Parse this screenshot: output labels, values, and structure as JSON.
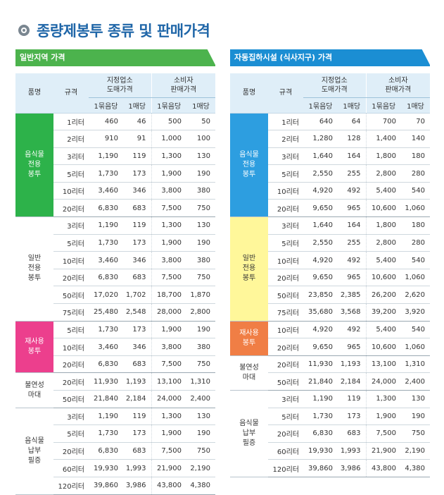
{
  "page_title": "종량제봉투 종류 및 판매가격",
  "headers": {
    "item": "품명",
    "spec": "규격",
    "wholesale": "지정업소\n도매가격",
    "retail": "소비자\n판매가격",
    "bundle": "1묶음당",
    "sheet": "1매당"
  },
  "left": {
    "title": "일반지역 가격",
    "groups": [
      {
        "name": "음식물\n전용\n봉투",
        "color": "green",
        "rows": [
          [
            "1리터",
            "460",
            "46",
            "500",
            "50"
          ],
          [
            "2리터",
            "910",
            "91",
            "1,000",
            "100"
          ],
          [
            "3리터",
            "1,190",
            "119",
            "1,300",
            "130"
          ],
          [
            "5리터",
            "1,730",
            "173",
            "1,900",
            "190"
          ],
          [
            "10리터",
            "3,460",
            "346",
            "3,800",
            "380"
          ],
          [
            "20리터",
            "6,830",
            "683",
            "7,500",
            "750"
          ]
        ]
      },
      {
        "name": "일반\n전용\n봉투",
        "color": "none",
        "rows": [
          [
            "3리터",
            "1,190",
            "119",
            "1,300",
            "130"
          ],
          [
            "5리터",
            "1,730",
            "173",
            "1,900",
            "190"
          ],
          [
            "10리터",
            "3,460",
            "346",
            "3,800",
            "380"
          ],
          [
            "20리터",
            "6,830",
            "683",
            "7,500",
            "750"
          ],
          [
            "50리터",
            "17,020",
            "1,702",
            "18,700",
            "1,870"
          ],
          [
            "75리터",
            "25,480",
            "2,548",
            "28,000",
            "2,800"
          ]
        ]
      },
      {
        "name": "재사용\n봉투",
        "color": "pink",
        "rows": [
          [
            "5리터",
            "1,730",
            "173",
            "1,900",
            "190"
          ],
          [
            "10리터",
            "3,460",
            "346",
            "3,800",
            "380"
          ],
          [
            "20리터",
            "6,830",
            "683",
            "7,500",
            "750"
          ]
        ]
      },
      {
        "name": "불연성\n마대",
        "color": "none",
        "rows": [
          [
            "20리터",
            "11,930",
            "1,193",
            "13,100",
            "1,310"
          ],
          [
            "50리터",
            "21,840",
            "2,184",
            "24,000",
            "2,400"
          ]
        ]
      },
      {
        "name": "음식물\n납부\n필증",
        "color": "none",
        "rows": [
          [
            "3리터",
            "1,190",
            "119",
            "1,300",
            "130"
          ],
          [
            "5리터",
            "1,730",
            "173",
            "1,900",
            "190"
          ],
          [
            "20리터",
            "6,830",
            "683",
            "7,500",
            "750"
          ],
          [
            "60리터",
            "19,930",
            "1,993",
            "21,900",
            "2,190"
          ],
          [
            "120리터",
            "39,860",
            "3,986",
            "43,800",
            "4,380"
          ]
        ]
      }
    ]
  },
  "right": {
    "title": "자동집하시설 (식사지구) 가격",
    "groups": [
      {
        "name": "음식물\n전용\n봉투",
        "color": "blue",
        "rows": [
          [
            "1리터",
            "640",
            "64",
            "700",
            "70"
          ],
          [
            "2리터",
            "1,280",
            "128",
            "1,400",
            "140"
          ],
          [
            "3리터",
            "1,640",
            "164",
            "1,800",
            "180"
          ],
          [
            "5리터",
            "2,550",
            "255",
            "2,800",
            "280"
          ],
          [
            "10리터",
            "4,920",
            "492",
            "5,400",
            "540"
          ],
          [
            "20리터",
            "9,650",
            "965",
            "10,600",
            "1,060"
          ]
        ]
      },
      {
        "name": "일반\n전용\n봉투",
        "color": "yellow",
        "rows": [
          [
            "3리터",
            "1,640",
            "164",
            "1,800",
            "180"
          ],
          [
            "5리터",
            "2,550",
            "255",
            "2,800",
            "280"
          ],
          [
            "10리터",
            "4,920",
            "492",
            "5,400",
            "540"
          ],
          [
            "20리터",
            "9,650",
            "965",
            "10,600",
            "1,060"
          ],
          [
            "50리터",
            "23,850",
            "2,385",
            "26,200",
            "2,620"
          ],
          [
            "75리터",
            "35,680",
            "3,568",
            "39,200",
            "3,920"
          ]
        ]
      },
      {
        "name": "재사용\n봉투",
        "color": "orange",
        "rows": [
          [
            "10리터",
            "4,920",
            "492",
            "5,400",
            "540"
          ],
          [
            "20리터",
            "9,650",
            "965",
            "10,600",
            "1,060"
          ]
        ]
      },
      {
        "name": "불연성\n마대",
        "color": "none",
        "rows": [
          [
            "20리터",
            "11,930",
            "1,193",
            "13,100",
            "1,310"
          ],
          [
            "50리터",
            "21,840",
            "2,184",
            "24,000",
            "2,400"
          ]
        ]
      },
      {
        "name": "음식물\n납부\n필증",
        "color": "none",
        "rows": [
          [
            "3리터",
            "1,190",
            "119",
            "1,300",
            "130"
          ],
          [
            "5리터",
            "1,730",
            "173",
            "1,900",
            "190"
          ],
          [
            "20리터",
            "6,830",
            "683",
            "7,500",
            "750"
          ],
          [
            "60리터",
            "19,930",
            "1,993",
            "21,900",
            "2,190"
          ],
          [
            "120리터",
            "39,860",
            "3,986",
            "43,800",
            "4,380"
          ]
        ]
      }
    ]
  }
}
